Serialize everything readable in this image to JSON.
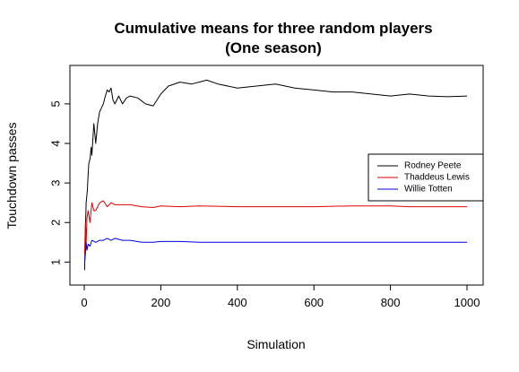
{
  "chart_data": {
    "type": "line",
    "title": "Cumulative means for three random players",
    "subtitle": "(One season)",
    "xlabel": "Simulation",
    "ylabel": "Touchdown passes",
    "xlim": [
      0,
      1000
    ],
    "ylim": [
      0.6,
      5.7
    ],
    "xticks": [
      0,
      200,
      400,
      600,
      800,
      1000
    ],
    "yticks": [
      1,
      2,
      3,
      4,
      5
    ],
    "grid": false,
    "legend_position": "right",
    "series": [
      {
        "name": "Rodney Peete",
        "color": "#000000",
        "x": [
          1,
          3,
          5,
          8,
          10,
          12,
          15,
          18,
          20,
          25,
          28,
          30,
          35,
          40,
          45,
          50,
          55,
          60,
          65,
          70,
          75,
          80,
          90,
          100,
          110,
          120,
          140,
          160,
          180,
          200,
          220,
          250,
          280,
          300,
          320,
          350,
          400,
          450,
          500,
          550,
          600,
          650,
          700,
          750,
          800,
          850,
          900,
          950,
          1000
        ],
        "y": [
          0.8,
          1.8,
          2.5,
          2.8,
          3.2,
          3.5,
          3.6,
          3.9,
          3.7,
          4.5,
          4.2,
          4.0,
          4.5,
          4.8,
          4.9,
          5.0,
          5.2,
          5.35,
          5.3,
          5.4,
          5.1,
          5.0,
          5.2,
          5.0,
          5.15,
          5.2,
          5.15,
          5.0,
          4.95,
          5.25,
          5.45,
          5.55,
          5.5,
          5.55,
          5.6,
          5.5,
          5.4,
          5.45,
          5.5,
          5.4,
          5.35,
          5.3,
          5.3,
          5.25,
          5.2,
          5.25,
          5.2,
          5.18,
          5.2
        ]
      },
      {
        "name": "Thaddeus Lewis",
        "color": "#e00000",
        "x": [
          1,
          3,
          5,
          7,
          10,
          15,
          20,
          25,
          30,
          35,
          40,
          50,
          60,
          70,
          80,
          100,
          120,
          150,
          180,
          200,
          250,
          300,
          400,
          500,
          600,
          700,
          800,
          850,
          900,
          950,
          1000
        ],
        "y": [
          1.2,
          2.0,
          1.5,
          2.1,
          2.3,
          2.0,
          2.5,
          2.3,
          2.3,
          2.4,
          2.5,
          2.55,
          2.4,
          2.5,
          2.45,
          2.45,
          2.45,
          2.4,
          2.38,
          2.42,
          2.4,
          2.42,
          2.4,
          2.4,
          2.4,
          2.42,
          2.42,
          2.4,
          2.4,
          2.4,
          2.4
        ]
      },
      {
        "name": "Willie Totten",
        "color": "#0000e0",
        "x": [
          1,
          3,
          5,
          7,
          10,
          15,
          20,
          30,
          40,
          50,
          60,
          70,
          80,
          100,
          120,
          150,
          180,
          200,
          250,
          300,
          400,
          500,
          600,
          700,
          800,
          900,
          1000
        ],
        "y": [
          1.0,
          1.2,
          1.5,
          1.3,
          1.45,
          1.4,
          1.55,
          1.5,
          1.55,
          1.55,
          1.6,
          1.55,
          1.6,
          1.55,
          1.55,
          1.5,
          1.5,
          1.52,
          1.52,
          1.5,
          1.5,
          1.5,
          1.5,
          1.5,
          1.5,
          1.5,
          1.5
        ]
      }
    ]
  }
}
